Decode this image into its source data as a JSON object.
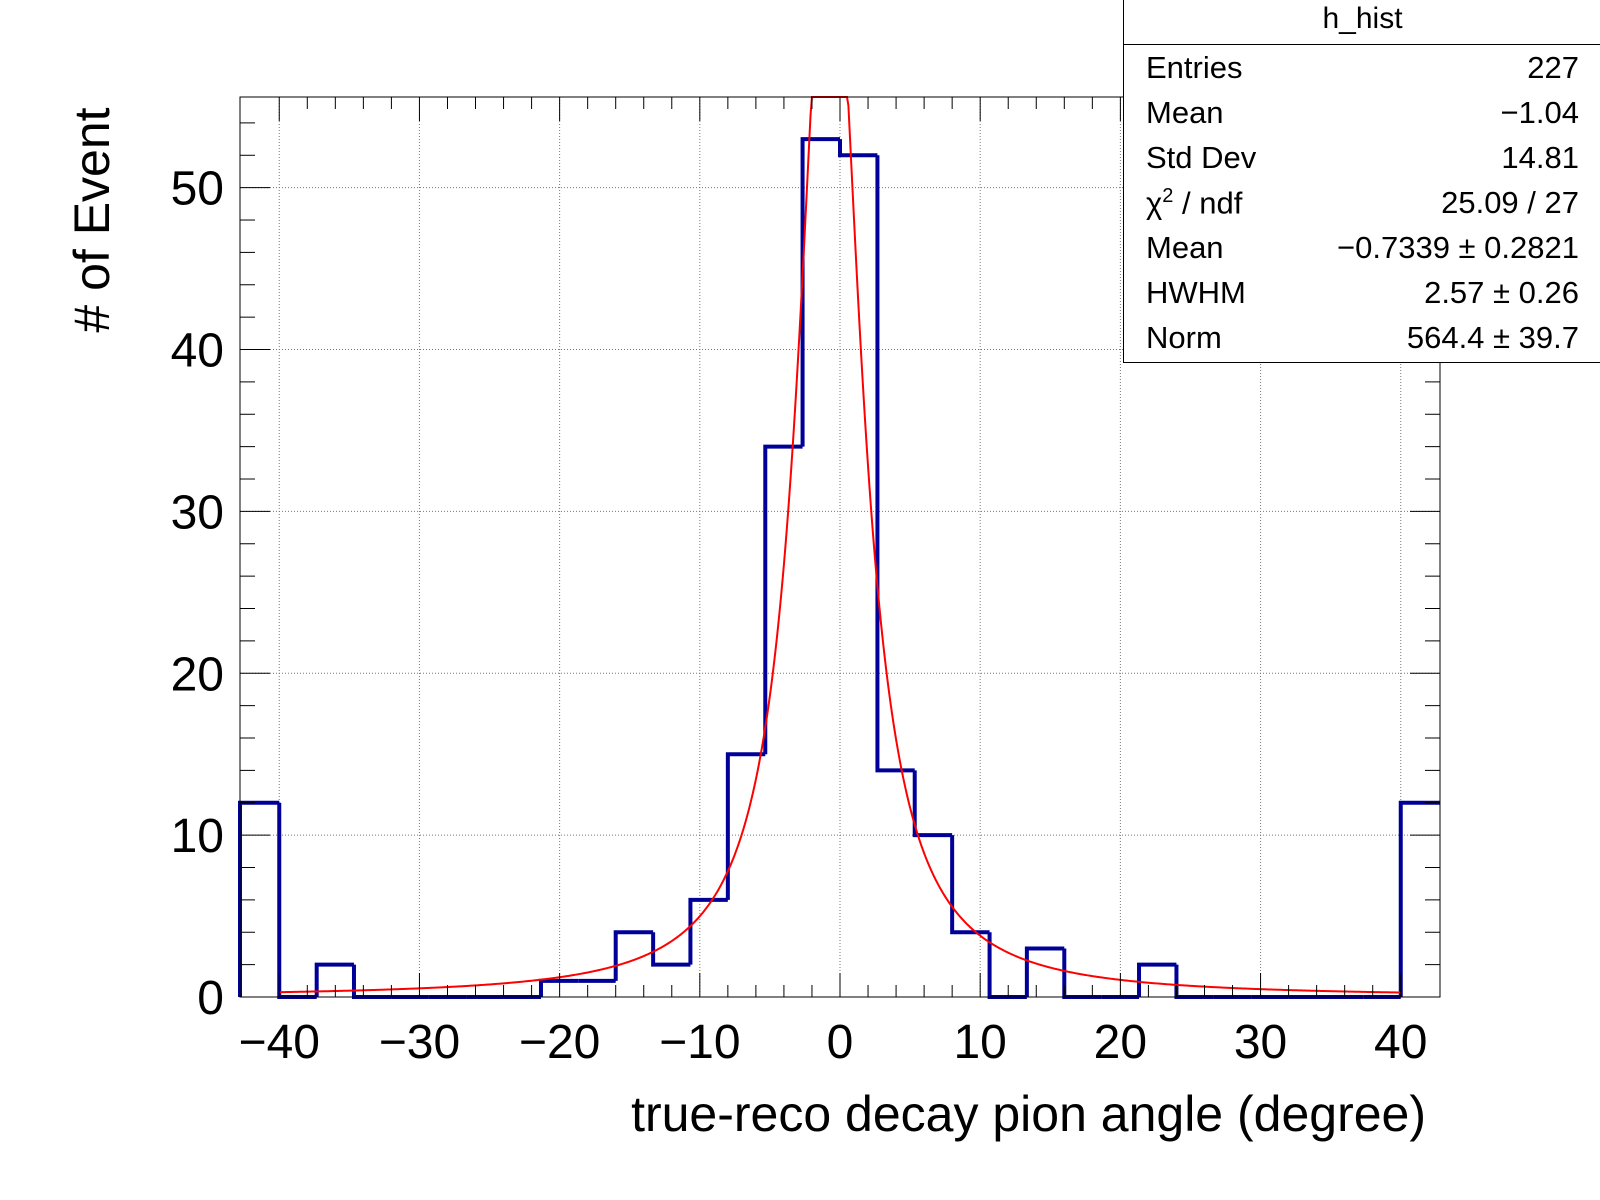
{
  "chart_data": {
    "type": "bar",
    "histogram_name": "h_hist",
    "xlabel": "true-reco decay pion angle (degree)",
    "ylabel": "# of Event",
    "xlim": [
      -42.8,
      42.8
    ],
    "ylim": [
      0,
      55.6
    ],
    "xticks": [
      -40,
      -30,
      -20,
      -10,
      0,
      10,
      20,
      30,
      40
    ],
    "xtick_labels": [
      "−40",
      "−30",
      "−20",
      "−10",
      "0",
      "10",
      "20",
      "30",
      "40"
    ],
    "yticks": [
      0,
      10,
      20,
      30,
      40,
      50
    ],
    "ytick_labels": [
      "0",
      "10",
      "20",
      "30",
      "40",
      "50"
    ],
    "grid": true,
    "histogram": {
      "color": "#000099",
      "bin_edges": [
        -42.8,
        -40.0,
        -37.33,
        -34.67,
        -32.0,
        -29.33,
        -26.67,
        -24.0,
        -21.33,
        -18.67,
        -16.0,
        -13.33,
        -10.67,
        -8.0,
        -5.33,
        -2.67,
        0.0,
        2.67,
        5.33,
        8.0,
        10.67,
        13.33,
        16.0,
        18.67,
        21.33,
        24.0,
        26.67,
        29.33,
        32.0,
        34.67,
        37.33,
        40.0,
        42.8
      ],
      "counts": [
        12,
        0,
        2,
        0,
        0,
        0,
        0,
        0,
        1,
        1,
        4,
        2,
        6,
        15,
        34,
        53,
        52,
        14,
        10,
        4,
        0,
        3,
        0,
        0,
        2,
        0,
        0,
        0,
        0,
        0,
        0,
        12
      ]
    },
    "fit": {
      "function": "lorentzian",
      "color": "#ff0000",
      "mean": -0.7339,
      "hwhm": 2.57,
      "norm": 564.4,
      "range": [
        -40,
        40
      ]
    },
    "stats_box": {
      "title": "h_hist",
      "rows": [
        {
          "key": "Entries",
          "value": "227",
          "sup": ""
        },
        {
          "key": "Mean",
          "value": "−1.04",
          "sup": ""
        },
        {
          "key": "Std Dev",
          "value": "14.81",
          "sup": ""
        },
        {
          "key": "χ",
          "value": "25.09 / 27",
          "sup": "2",
          "suffix": " / ndf"
        },
        {
          "key": "Mean",
          "value": "−0.7339 ± 0.2821",
          "sup": ""
        },
        {
          "key": "HWHM",
          "value": "2.57 ± 0.26",
          "sup": ""
        },
        {
          "key": "Norm",
          "value": "564.4 ± 39.7",
          "sup": ""
        }
      ]
    }
  }
}
